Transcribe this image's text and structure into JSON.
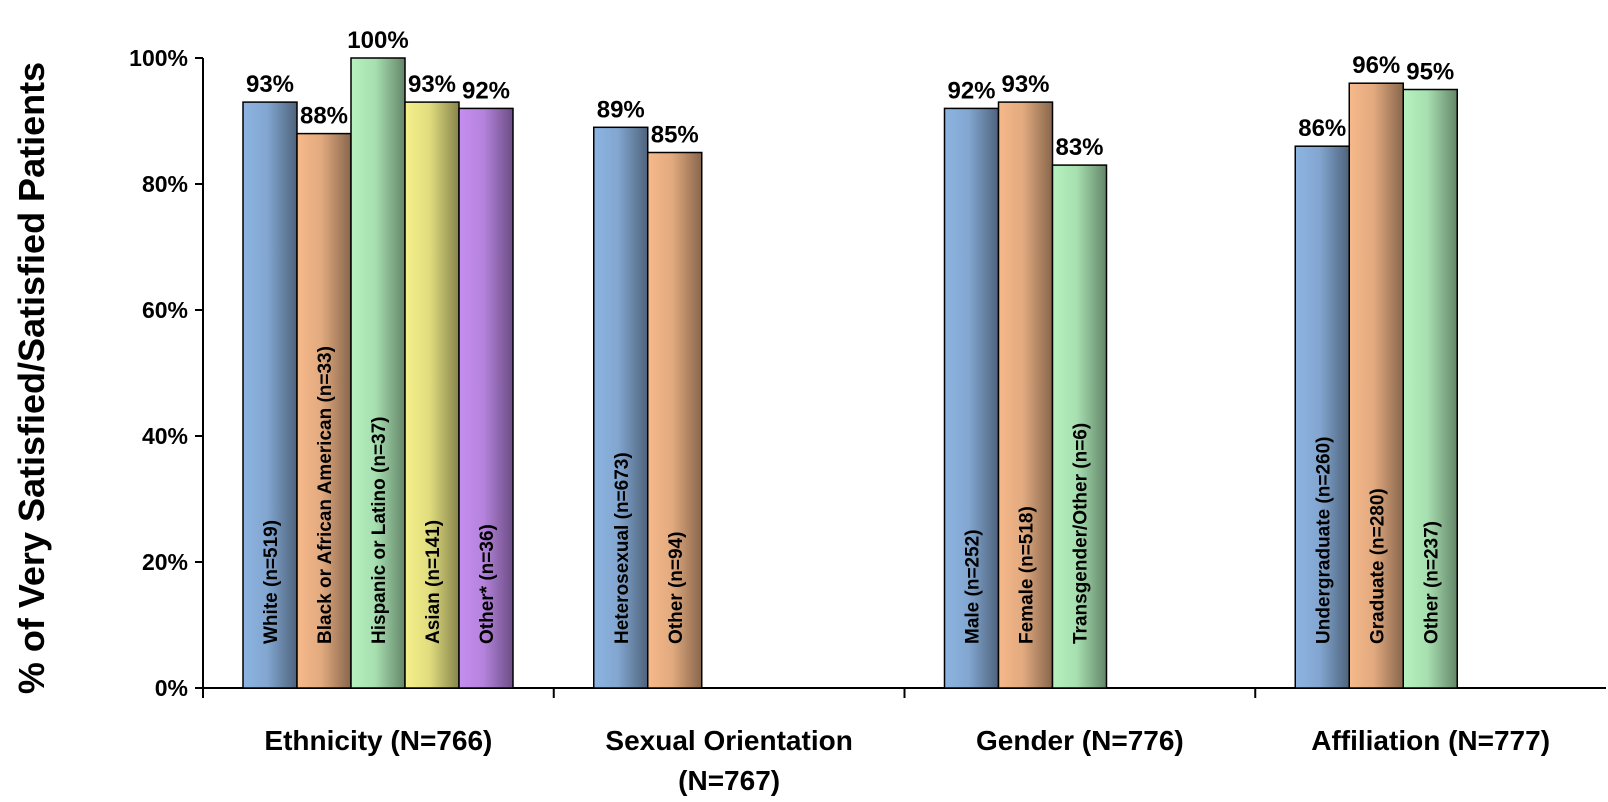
{
  "chart_data": {
    "type": "bar",
    "ylabel": "% of Very Satisfied/Satisfied Patients",
    "ylim": [
      0,
      100
    ],
    "y_ticks": [
      "0%",
      "20%",
      "40%",
      "60%",
      "80%",
      "100%"
    ],
    "grid": false,
    "legend": "none",
    "colors": {
      "blue": "#8db4e2",
      "orange": "#f6b98a",
      "green": "#b6f2bf",
      "yellow": "#f5f08a",
      "purple": "#c58ef0"
    },
    "groups": [
      {
        "label": "Ethnicity (N=766)",
        "label_lines": [
          "Ethnicity (N=766)"
        ],
        "bars": [
          {
            "label": "White (n=519)",
            "value": 93,
            "value_label": "93%",
            "color": "blue"
          },
          {
            "label": "Black or African American (n=33)",
            "value": 88,
            "value_label": "88%",
            "color": "orange"
          },
          {
            "label": "Hispanic or Latino (n=37)",
            "value": 100,
            "value_label": "100%",
            "color": "green"
          },
          {
            "label": "Asian (n=141)",
            "value": 93,
            "value_label": "93%",
            "color": "yellow"
          },
          {
            "label": "Other* (n=36)",
            "value": 92,
            "value_label": "92%",
            "color": "purple"
          }
        ]
      },
      {
        "label": "Sexual Orientation (N=767)",
        "label_lines": [
          "Sexual Orientation",
          "(N=767)"
        ],
        "bars": [
          {
            "label": "Heterosexual (n=673)",
            "value": 89,
            "value_label": "89%",
            "color": "blue"
          },
          {
            "label": "Other (n=94)",
            "value": 85,
            "value_label": "85%",
            "color": "orange"
          }
        ]
      },
      {
        "label": "Gender (N=776)",
        "label_lines": [
          "Gender (N=776)"
        ],
        "bars": [
          {
            "label": "Male (n=252)",
            "value": 92,
            "value_label": "92%",
            "color": "blue"
          },
          {
            "label": "Female (n=518)",
            "value": 93,
            "value_label": "93%",
            "color": "orange"
          },
          {
            "label": "Transgender/Other (n=6)",
            "value": 83,
            "value_label": "83%",
            "color": "green"
          }
        ]
      },
      {
        "label": "Affiliation (N=777)",
        "label_lines": [
          "Affiliation (N=777)"
        ],
        "bars": [
          {
            "label": "Undergraduate (n=260)",
            "value": 86,
            "value_label": "86%",
            "color": "blue"
          },
          {
            "label": "Graduate (n=280)",
            "value": 96,
            "value_label": "96%",
            "color": "orange"
          },
          {
            "label": "Other (n=237)",
            "value": 95,
            "value_label": "95%",
            "color": "green"
          }
        ]
      }
    ]
  }
}
